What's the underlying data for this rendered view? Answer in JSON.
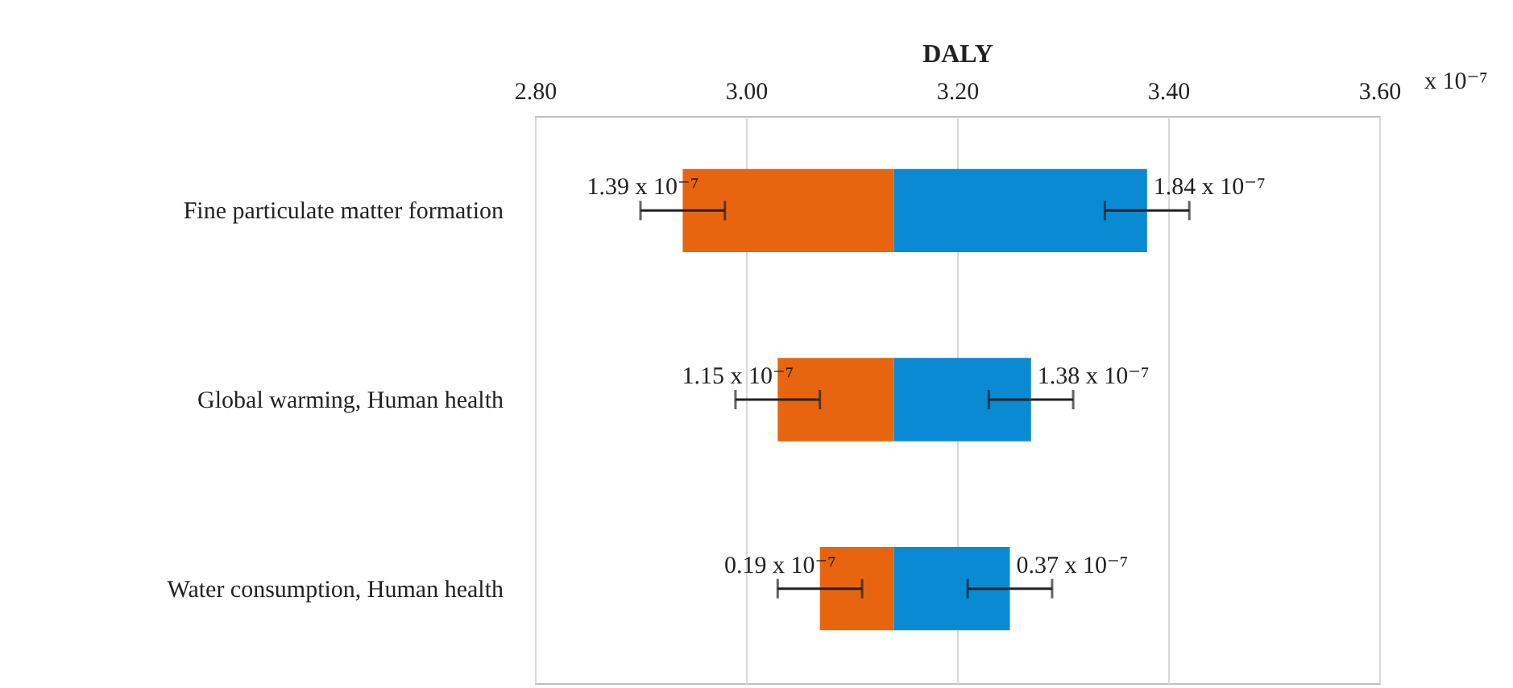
{
  "chart_data": {
    "type": "bar",
    "orientation": "horizontal",
    "xlabel": "DALY",
    "categories": [
      "Fine particulate matter formation",
      "Global warming, Human health",
      "Water consumption, Human health"
    ],
    "series": [
      {
        "color": "#e8650f",
        "base": [
          3.14,
          3.14,
          3.14
        ],
        "values": [
          -0.2,
          -0.11,
          -0.07
        ],
        "errors": [
          0.04,
          0.04,
          0.04
        ]
      },
      {
        "color": "#0a8ad2",
        "base": [
          3.14,
          3.14,
          3.14
        ],
        "values": [
          0.24,
          0.13,
          0.11
        ],
        "errors": [
          0.04,
          0.04,
          0.04
        ]
      }
    ],
    "xlim": [
      2.8,
      3.6
    ],
    "xticks": [
      {
        "value": 2.8,
        "label": "2.80"
      },
      {
        "value": 3.0,
        "label": "3.00"
      },
      {
        "value": 3.2,
        "label": "3.20"
      },
      {
        "value": 3.4,
        "label": "3.40"
      },
      {
        "value": 3.6,
        "label": "3.60"
      }
    ],
    "annotations": [
      "x 10⁻⁷",
      {
        "text": "1.39 x 10⁻⁷",
        "x": 2.94,
        "y": "Fine particulate matter formation"
      },
      {
        "text": "1.84 x 10⁻⁷",
        "x": 3.38,
        "y": "Fine particulate matter formation"
      },
      {
        "text": "1.15 x 10⁻⁷",
        "x": 3.03,
        "y": "Global warming, Human health"
      },
      {
        "text": "1.38 x 10⁻⁷",
        "x": 3.27,
        "y": "Global warming, Human health"
      },
      {
        "text": "0.19 x 10⁻⁷",
        "x": 3.07,
        "y": "Water consumption, Human health"
      },
      {
        "text": "0.37 x 10⁻⁷",
        "x": 3.25,
        "y": "Water consumption, Human health"
      }
    ],
    "grid": "x"
  }
}
